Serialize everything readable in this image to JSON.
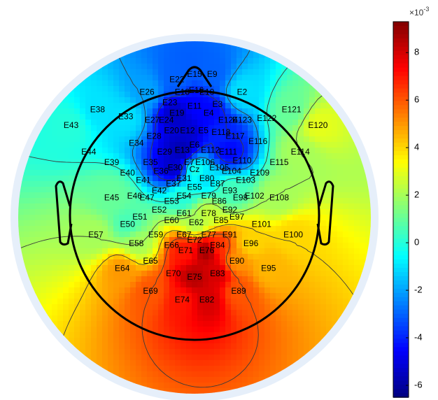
{
  "chart_data": {
    "type": "heatmap",
    "subtype": "eeg-topographic-scalp-map",
    "colormap": "jet",
    "clim": [
      -0.0065,
      0.0093
    ],
    "colorbar": {
      "exponent_label": "×10",
      "exponent": "-3",
      "tick_values": [
        8,
        6,
        4,
        2,
        0,
        -2,
        -4,
        -6
      ],
      "tick_labels": [
        "8",
        "6",
        "4",
        "2",
        "0",
        "-2",
        "-4",
        "-6"
      ],
      "scale": 0.001
    },
    "field_sources": [
      {
        "electrode": "E11",
        "value": -0.0045
      },
      {
        "electrode": "E19",
        "value": -0.0055
      },
      {
        "electrode": "E12",
        "value": -0.0053
      },
      {
        "electrode": "E13",
        "value": -0.0058
      },
      {
        "electrode": "E30",
        "value": -0.0055
      },
      {
        "electrode": "E4",
        "value": -0.0045
      },
      {
        "electrode": "E111",
        "value": -0.0045
      },
      {
        "electrode": "E118",
        "value": -0.004
      },
      {
        "electrode": "E33",
        "value": -0.001
      },
      {
        "electrode": "E2",
        "value": -0.001
      },
      {
        "electrode": "E43",
        "value": 0.0
      },
      {
        "electrode": "E120",
        "value": 0.003
      },
      {
        "electrode": "E114",
        "value": 0.002
      },
      {
        "electrode": "E108",
        "value": 0.002
      },
      {
        "electrode": "E100",
        "value": 0.004
      },
      {
        "electrode": "E64",
        "value": 0.005
      },
      {
        "electrode": "E69",
        "value": 0.006
      },
      {
        "electrode": "E74",
        "value": 0.007
      },
      {
        "electrode": "E82",
        "value": 0.008
      },
      {
        "electrode": "E76",
        "value": 0.009
      },
      {
        "electrode": "E75",
        "value": 0.0085
      },
      {
        "electrode": "E83",
        "value": 0.008
      },
      {
        "electrode": "E71",
        "value": 0.007
      },
      {
        "electrode": "E84",
        "value": 0.0065
      },
      {
        "electrode": "E96",
        "value": 0.004
      },
      {
        "electrode": "E95",
        "value": 0.0045
      },
      {
        "electrode": "E89",
        "value": 0.006
      },
      {
        "electrode": "E90",
        "value": 0.005
      },
      {
        "electrode": "E57",
        "value": 0.002
      },
      {
        "electrode": "E58",
        "value": 0.002
      },
      {
        "electrode": "E50",
        "value": 0.0005
      },
      {
        "electrode": "E45",
        "value": 0.001
      },
      {
        "electrode": "E80",
        "value": -0.001
      },
      {
        "electrode": "Cz",
        "value": 0.0
      },
      {
        "electrode": "E62",
        "value": 0.002
      },
      {
        "electrode": "E78",
        "value": 0.0025
      },
      {
        "electrode": "E54",
        "value": 0.0
      },
      {
        "electrode": "E93",
        "value": 0.0005
      },
      {
        "electrode": "E9",
        "value": -0.003
      },
      {
        "electrode": "E22",
        "value": -0.003
      },
      {
        "electrode": "E26",
        "value": -0.002
      },
      {
        "electrode": "E38",
        "value": -0.001
      },
      {
        "electrode": "E121",
        "value": 0.001
      }
    ],
    "electrodes": [
      {
        "label": "E15",
        "x": 0.0,
        "y": 0.81
      },
      {
        "label": "E9",
        "x": 0.1,
        "y": 0.81
      },
      {
        "label": "E22",
        "x": -0.1,
        "y": 0.78
      },
      {
        "label": "E18",
        "x": -0.07,
        "y": 0.71
      },
      {
        "label": "E16",
        "x": 0.01,
        "y": 0.72
      },
      {
        "label": "E10",
        "x": 0.07,
        "y": 0.71
      },
      {
        "label": "E26",
        "x": -0.27,
        "y": 0.71
      },
      {
        "label": "E2",
        "x": 0.27,
        "y": 0.71
      },
      {
        "label": "E23",
        "x": -0.14,
        "y": 0.65
      },
      {
        "label": "E11",
        "x": 0.0,
        "y": 0.63
      },
      {
        "label": "E3",
        "x": 0.13,
        "y": 0.64
      },
      {
        "label": "E38",
        "x": -0.55,
        "y": 0.61
      },
      {
        "label": "E121",
        "x": 0.55,
        "y": 0.61
      },
      {
        "label": "E33",
        "x": -0.39,
        "y": 0.57
      },
      {
        "label": "E19",
        "x": -0.1,
        "y": 0.59
      },
      {
        "label": "E4",
        "x": 0.08,
        "y": 0.59
      },
      {
        "label": "E27",
        "x": -0.24,
        "y": 0.55
      },
      {
        "label": "E24",
        "x": -0.16,
        "y": 0.55
      },
      {
        "label": "E124",
        "x": 0.19,
        "y": 0.55
      },
      {
        "label": "E123",
        "x": 0.27,
        "y": 0.55
      },
      {
        "label": "E122",
        "x": 0.41,
        "y": 0.56
      },
      {
        "label": "E43",
        "x": -0.7,
        "y": 0.52
      },
      {
        "label": "E120",
        "x": 0.7,
        "y": 0.52
      },
      {
        "label": "E20",
        "x": -0.13,
        "y": 0.49
      },
      {
        "label": "E12",
        "x": -0.04,
        "y": 0.49
      },
      {
        "label": "E5",
        "x": 0.05,
        "y": 0.49
      },
      {
        "label": "E118",
        "x": 0.15,
        "y": 0.48
      },
      {
        "label": "E28",
        "x": -0.23,
        "y": 0.46
      },
      {
        "label": "E117",
        "x": 0.23,
        "y": 0.46
      },
      {
        "label": "E34",
        "x": -0.33,
        "y": 0.42
      },
      {
        "label": "E116",
        "x": 0.36,
        "y": 0.43
      },
      {
        "label": "E6",
        "x": 0.0,
        "y": 0.41
      },
      {
        "label": "E13",
        "x": -0.07,
        "y": 0.38
      },
      {
        "label": "E112",
        "x": 0.09,
        "y": 0.38
      },
      {
        "label": "E29",
        "x": -0.17,
        "y": 0.37
      },
      {
        "label": "E111",
        "x": 0.19,
        "y": 0.37
      },
      {
        "label": "E44",
        "x": -0.6,
        "y": 0.37
      },
      {
        "label": "E114",
        "x": 0.6,
        "y": 0.37
      },
      {
        "label": "E39",
        "x": -0.47,
        "y": 0.31
      },
      {
        "label": "E115",
        "x": 0.48,
        "y": 0.31
      },
      {
        "label": "E35",
        "x": -0.25,
        "y": 0.31
      },
      {
        "label": "E7",
        "x": -0.03,
        "y": 0.31
      },
      {
        "label": "E106",
        "x": 0.06,
        "y": 0.31
      },
      {
        "label": "E110",
        "x": 0.27,
        "y": 0.32
      },
      {
        "label": "E30",
        "x": -0.11,
        "y": 0.28
      },
      {
        "label": "E105",
        "x": 0.14,
        "y": 0.28
      },
      {
        "label": "Cz",
        "x": 0.0,
        "y": 0.27
      },
      {
        "label": "E36",
        "x": -0.19,
        "y": 0.26
      },
      {
        "label": "E104",
        "x": 0.21,
        "y": 0.26
      },
      {
        "label": "E40",
        "x": -0.38,
        "y": 0.25
      },
      {
        "label": "E109",
        "x": 0.37,
        "y": 0.25
      },
      {
        "label": "E31",
        "x": -0.06,
        "y": 0.22
      },
      {
        "label": "E80",
        "x": 0.07,
        "y": 0.22
      },
      {
        "label": "E41",
        "x": -0.29,
        "y": 0.21
      },
      {
        "label": "E37",
        "x": -0.12,
        "y": 0.19
      },
      {
        "label": "E87",
        "x": 0.13,
        "y": 0.19
      },
      {
        "label": "E103",
        "x": 0.29,
        "y": 0.21
      },
      {
        "label": "E55",
        "x": 0.0,
        "y": 0.17
      },
      {
        "label": "E42",
        "x": -0.2,
        "y": 0.15
      },
      {
        "label": "E93",
        "x": 0.2,
        "y": 0.15
      },
      {
        "label": "E46",
        "x": -0.34,
        "y": 0.12
      },
      {
        "label": "E102",
        "x": 0.34,
        "y": 0.12
      },
      {
        "label": "E45",
        "x": -0.47,
        "y": 0.11
      },
      {
        "label": "E108",
        "x": 0.48,
        "y": 0.11
      },
      {
        "label": "E47",
        "x": -0.27,
        "y": 0.11
      },
      {
        "label": "E98",
        "x": 0.26,
        "y": 0.11
      },
      {
        "label": "E54",
        "x": -0.06,
        "y": 0.12
      },
      {
        "label": "E79",
        "x": 0.08,
        "y": 0.12
      },
      {
        "label": "E53",
        "x": -0.13,
        "y": 0.09
      },
      {
        "label": "E86",
        "x": 0.14,
        "y": 0.09
      },
      {
        "label": "E52",
        "x": -0.2,
        "y": 0.04
      },
      {
        "label": "E92",
        "x": 0.2,
        "y": 0.04
      },
      {
        "label": "E61",
        "x": -0.06,
        "y": 0.02
      },
      {
        "label": "E78",
        "x": 0.08,
        "y": 0.02
      },
      {
        "label": "E51",
        "x": -0.31,
        "y": 0.0
      },
      {
        "label": "E97",
        "x": 0.24,
        "y": 0.0
      },
      {
        "label": "E60",
        "x": -0.13,
        "y": -0.02
      },
      {
        "label": "E85",
        "x": 0.15,
        "y": -0.02
      },
      {
        "label": "E50",
        "x": -0.38,
        "y": -0.04
      },
      {
        "label": "E101",
        "x": 0.38,
        "y": -0.04
      },
      {
        "label": "E62",
        "x": 0.01,
        "y": -0.03
      },
      {
        "label": "E57",
        "x": -0.56,
        "y": -0.1
      },
      {
        "label": "E100",
        "x": 0.56,
        "y": -0.1
      },
      {
        "label": "E59",
        "x": -0.22,
        "y": -0.1
      },
      {
        "label": "E67",
        "x": -0.06,
        "y": -0.1
      },
      {
        "label": "E77",
        "x": 0.08,
        "y": -0.1
      },
      {
        "label": "E91",
        "x": 0.2,
        "y": -0.1
      },
      {
        "label": "E72",
        "x": 0.0,
        "y": -0.13
      },
      {
        "label": "E58",
        "x": -0.33,
        "y": -0.15
      },
      {
        "label": "E96",
        "x": 0.32,
        "y": -0.15
      },
      {
        "label": "E66",
        "x": -0.13,
        "y": -0.16
      },
      {
        "label": "E84",
        "x": 0.13,
        "y": -0.16
      },
      {
        "label": "E71",
        "x": -0.05,
        "y": -0.19
      },
      {
        "label": "E76",
        "x": 0.07,
        "y": -0.19
      },
      {
        "label": "E65",
        "x": -0.25,
        "y": -0.25
      },
      {
        "label": "E90",
        "x": 0.24,
        "y": -0.25
      },
      {
        "label": "E64",
        "x": -0.41,
        "y": -0.29
      },
      {
        "label": "E95",
        "x": 0.42,
        "y": -0.29
      },
      {
        "label": "E70",
        "x": -0.12,
        "y": -0.32
      },
      {
        "label": "E83",
        "x": 0.13,
        "y": -0.32
      },
      {
        "label": "E75",
        "x": 0.0,
        "y": -0.34
      },
      {
        "label": "E69",
        "x": -0.25,
        "y": -0.42
      },
      {
        "label": "E89",
        "x": 0.25,
        "y": -0.42
      },
      {
        "label": "E74",
        "x": -0.07,
        "y": -0.47
      },
      {
        "label": "E82",
        "x": 0.07,
        "y": -0.47
      }
    ]
  }
}
